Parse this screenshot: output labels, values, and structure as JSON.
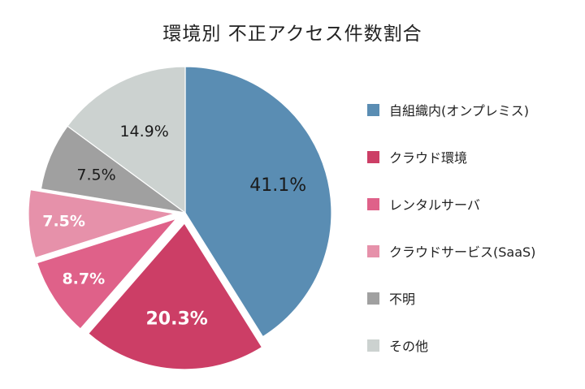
{
  "chart_data": {
    "type": "pie",
    "title": "環境別 不正アクセス件数割合",
    "slices": [
      {
        "name": "自組織内(オンプレミス)",
        "value": 41.1,
        "label": "41.1%",
        "color": "#5a8db3",
        "text_color": "#1a1a1a",
        "exploded": false
      },
      {
        "name": "クラウド環境",
        "value": 20.3,
        "label": "20.3%",
        "color": "#cc3e66",
        "text_color": "#ffffff",
        "exploded": true
      },
      {
        "name": "レンタルサーバ",
        "value": 8.7,
        "label": "8.7%",
        "color": "#df6189",
        "text_color": "#ffffff",
        "exploded": true
      },
      {
        "name": "クラウドサービス(SaaS)",
        "value": 7.5,
        "label": "7.5%",
        "color": "#e691aa",
        "text_color": "#ffffff",
        "exploded": true
      },
      {
        "name": "不明",
        "value": 7.5,
        "label": "7.5%",
        "color": "#a0a0a0",
        "text_color": "#1a1a1a",
        "exploded": false
      },
      {
        "name": "その他",
        "value": 14.9,
        "label": "14.9%",
        "color": "#ccd2d0",
        "text_color": "#1a1a1a",
        "exploded": false
      }
    ],
    "legend_position": "right"
  }
}
